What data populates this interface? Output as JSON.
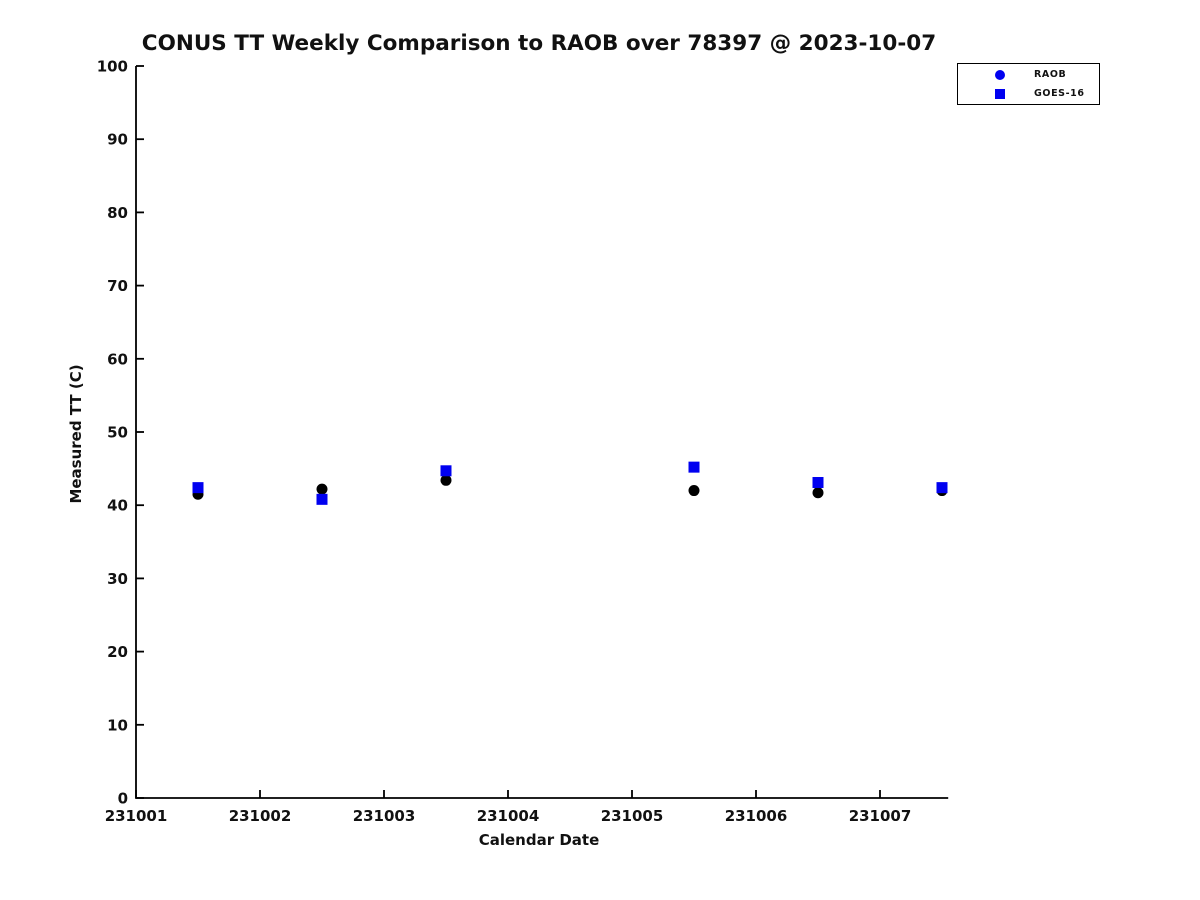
{
  "chart_data": {
    "type": "scatter",
    "title": "CONUS TT Weekly Comparison to RAOB over 78397 @ 2023-10-07",
    "xlabel": "Calendar Date",
    "ylabel": "Measured TT (C)",
    "xlim": [
      231001,
      231007.55
    ],
    "ylim": [
      0,
      100
    ],
    "x_ticks": [
      231001,
      231002,
      231003,
      231004,
      231005,
      231006,
      231007
    ],
    "y_ticks": [
      0,
      10,
      20,
      30,
      40,
      50,
      60,
      70,
      80,
      90,
      100
    ],
    "grid": false,
    "legend_position": "top-right",
    "series": [
      {
        "name": "RAOB",
        "marker": "circle",
        "marker_color": "#000000",
        "legend_marker_color": "#0000F0",
        "points": [
          [
            231001.5,
            41.5
          ],
          [
            231002.5,
            42.2
          ],
          [
            231003.5,
            43.4
          ],
          [
            231005.5,
            42.0
          ],
          [
            231006.5,
            41.7
          ],
          [
            231007.5,
            42.0
          ]
        ]
      },
      {
        "name": "GOES-16",
        "marker": "square",
        "marker_color": "#0000F0",
        "legend_marker_color": "#0000F0",
        "points": [
          [
            231001.5,
            42.4
          ],
          [
            231002.5,
            40.8
          ],
          [
            231003.5,
            44.7
          ],
          [
            231005.5,
            45.2
          ],
          [
            231006.5,
            43.1
          ],
          [
            231007.5,
            42.4
          ]
        ]
      }
    ]
  },
  "colors": {
    "axis": "#000000",
    "text": "#111111",
    "background": "#ffffff"
  }
}
